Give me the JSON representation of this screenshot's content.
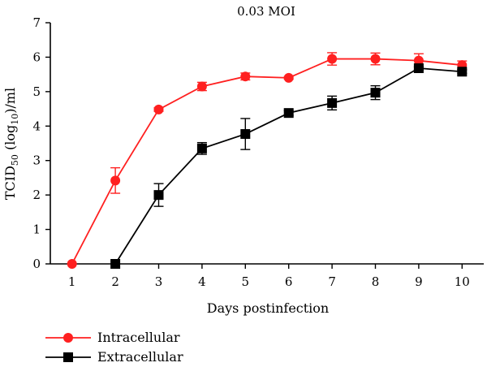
{
  "chart_data": {
    "type": "line",
    "title": "0.03 MOI",
    "xlabel": "Days postinfection",
    "ylabel": {
      "prefix": "TCID",
      "sub1": "50",
      "mid": " (log",
      "sub2": "10",
      "suffix": ")/ml"
    },
    "x": [
      1,
      2,
      3,
      4,
      5,
      6,
      7,
      8,
      9,
      10
    ],
    "xlim": [
      0.5,
      10.5
    ],
    "ylim": [
      0,
      7
    ],
    "xticks": [
      "1",
      "2",
      "3",
      "4",
      "5",
      "6",
      "7",
      "8",
      "9",
      "10"
    ],
    "yticks": [
      "0",
      "1",
      "2",
      "3",
      "4",
      "5",
      "6",
      "7"
    ],
    "grid": false,
    "legend_position": "bottom-left",
    "series": [
      {
        "name": "Intracellular",
        "color": "#ff2020",
        "marker": "circle",
        "x": [
          1,
          2,
          3,
          4,
          5,
          6,
          7,
          8,
          9,
          10
        ],
        "values": [
          0,
          2.42,
          4.48,
          5.15,
          5.44,
          5.4,
          5.95,
          5.95,
          5.9,
          5.77
        ],
        "errors": [
          0,
          0.37,
          0.05,
          0.12,
          0.1,
          0.04,
          0.18,
          0.17,
          0.2,
          0.12
        ]
      },
      {
        "name": "Extracellular",
        "color": "#000000",
        "marker": "square",
        "x": [
          2,
          3,
          4,
          5,
          6,
          7,
          8,
          9,
          10
        ],
        "values": [
          0,
          2.0,
          3.35,
          3.77,
          4.38,
          4.67,
          4.97,
          5.68,
          5.58
        ],
        "errors": [
          0,
          0.33,
          0.17,
          0.45,
          0.07,
          0.2,
          0.2,
          0.05,
          0.05
        ]
      }
    ]
  }
}
